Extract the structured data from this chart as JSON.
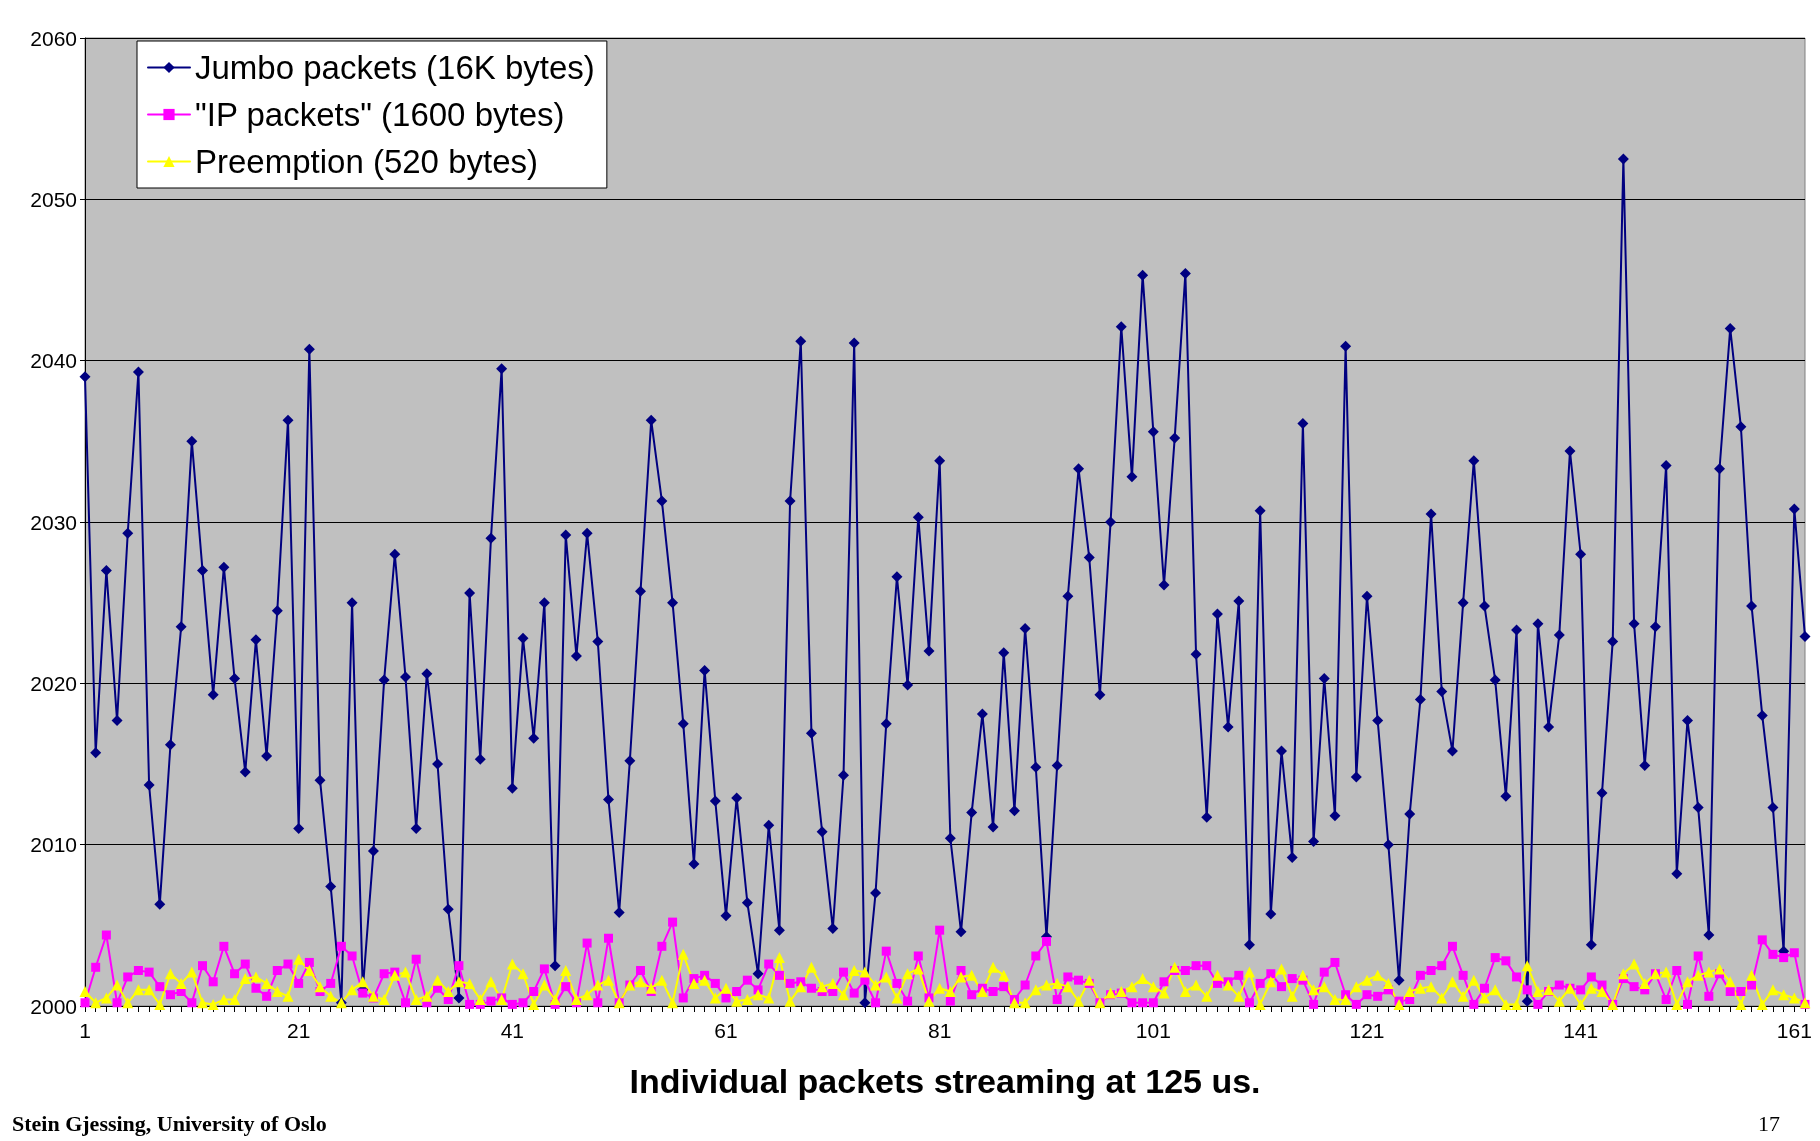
{
  "chart_data": {
    "type": "line",
    "xlabel": "Individual packets streaming at 125 us.",
    "categories": [
      "1",
      null,
      null,
      null,
      null,
      null,
      null,
      null,
      null,
      null,
      null,
      null,
      null,
      null,
      null,
      null,
      null,
      null,
      null,
      null,
      "21",
      null,
      null,
      null,
      null,
      null,
      null,
      null,
      null,
      null,
      null,
      null,
      null,
      null,
      null,
      null,
      null,
      null,
      null,
      null,
      "41",
      null,
      null,
      null,
      null,
      null,
      null,
      null,
      null,
      null,
      null,
      null,
      null,
      null,
      null,
      null,
      null,
      null,
      null,
      null,
      "61",
      null,
      null,
      null,
      null,
      null,
      null,
      null,
      null,
      null,
      null,
      null,
      null,
      null,
      null,
      null,
      null,
      null,
      null,
      null,
      "81",
      null,
      null,
      null,
      null,
      null,
      null,
      null,
      null,
      null,
      null,
      null,
      null,
      null,
      null,
      null,
      null,
      null,
      null,
      null,
      "101",
      null,
      null,
      null,
      null,
      null,
      null,
      null,
      null,
      null,
      null,
      null,
      null,
      null,
      null,
      null,
      null,
      null,
      null,
      null,
      "121",
      null,
      null,
      null,
      null,
      null,
      null,
      null,
      null,
      null,
      null,
      null,
      null,
      null,
      null,
      null,
      null,
      null,
      null,
      null,
      "141",
      null,
      null,
      null,
      null,
      null,
      null,
      null,
      null,
      null,
      null,
      null,
      null,
      null,
      null,
      null,
      null,
      null,
      null,
      null,
      "161",
      null
    ],
    "series": [
      {
        "name": "Jumbo packets (16K bytes)",
        "color": "#000080",
        "marker": "diamond",
        "values": [
          2039,
          2015.7,
          2027,
          2017.7,
          2029.3,
          2039.3,
          2013.7,
          2006.3,
          2016.2,
          2023.5,
          2035,
          2027,
          2019.3,
          2027.2,
          2020.3,
          2014.5,
          2022.7,
          2015.5,
          2024.5,
          2036.3,
          2011,
          2040.7,
          2014,
          2007.4,
          2000.2,
          2025,
          2001,
          2009.6,
          2020.2,
          2028,
          2020.4,
          2011,
          2020.6,
          2015,
          2006,
          2000.5,
          2025.6,
          2015.3,
          2029,
          2039.5,
          2013.5,
          2022.8,
          2016.6,
          2025,
          2002.5,
          2029.2,
          2021.7,
          2029.3,
          2022.6,
          2012.8,
          2005.8,
          2015.2,
          2025.7,
          2036.3,
          2031.3,
          2025,
          2017.5,
          2008.8,
          2020.8,
          2012.7,
          2005.6,
          2012.9,
          2006.4,
          2002,
          2011.2,
          2004.7,
          2031.3,
          2041.2,
          2016.9,
          2010.8,
          2004.8,
          2014.3,
          2041.1,
          2000.2,
          2007,
          2017.5,
          2026.6,
          2019.9,
          2030.3,
          2022,
          2033.8,
          2010.4,
          2004.6,
          2012,
          2018.1,
          2011.1,
          2021.9,
          2012.1,
          2023.4,
          2014.8,
          2004.3,
          2014.9,
          2025.4,
          2033.3,
          2027.8,
          2019.3,
          2030,
          2042.1,
          2032.8,
          2045.3,
          2035.6,
          2026.1,
          2035.2,
          2045.4,
          2021.8,
          2011.7,
          2024.3,
          2017.3,
          2025.1,
          2003.8,
          2030.7,
          2005.7,
          2015.8,
          2009.2,
          2036.1,
          2010.2,
          2020.3,
          2011.8,
          2040.9,
          2014.2,
          2025.4,
          2017.7,
          2010,
          2001.6,
          2011.9,
          2019,
          2030.5,
          2019.5,
          2015.8,
          2025,
          2033.8,
          2024.8,
          2020.2,
          2013,
          2023.3,
          2000.3,
          2023.7,
          2017.3,
          2023,
          2034.4,
          2028,
          2003.8,
          2013.2,
          2022.6,
          2052.5,
          2023.7,
          2014.9,
          2023.5,
          2033.5,
          2008.2,
          2017.7,
          2012.3,
          2004.4,
          2033.3,
          2042,
          2035.9,
          2024.8,
          2018,
          2012.3,
          2003.4,
          2030.8,
          2022.9
        ]
      },
      {
        "name": "\"IP packets\" (1600 bytes)",
        "color": "#ff00ff",
        "marker": "square",
        "values": [
          2000.2,
          2002.4,
          2004.4,
          2000.2,
          2001.8,
          2002.2,
          2002.1,
          2001.2,
          2000.7,
          2000.9,
          2000.2,
          2002.5,
          2001.5,
          2003.7,
          2002,
          2002.6,
          2001.1,
          2000.6,
          2002.2,
          2002.6,
          2001.4,
          2002.7,
          2000.9,
          2001.4,
          2003.7,
          2003.1,
          2000.8,
          2000.5,
          2002,
          2002.1,
          2000.2,
          2002.9,
          2000.2,
          2001.1,
          2000.4,
          2002.5,
          2000.1,
          2000.1,
          2000.3,
          2000.5,
          2000.1,
          2000.2,
          2000.9,
          2002.3,
          2000.1,
          2001.2,
          2000.2,
          2003.9,
          2000.2,
          2004.2,
          2000.2,
          2001.3,
          2002.2,
          2000.9,
          2003.7,
          2005.2,
          2000.5,
          2001.7,
          2001.9,
          2001.4,
          2000.5,
          2000.9,
          2001.6,
          2001,
          2002.6,
          2001.9,
          2001.4,
          2001.5,
          2001.1,
          2000.9,
          2000.9,
          2002.1,
          2000.8,
          2001.6,
          2000.2,
          2003.4,
          2001.4,
          2000.3,
          2003.1,
          2000.5,
          2004.7,
          2000.3,
          2002.2,
          2000.7,
          2001.1,
          2000.9,
          2001.2,
          2000.4,
          2001.3,
          2003.1,
          2004,
          2000.4,
          2001.8,
          2001.6,
          2001.4,
          2000.2,
          2000.7,
          2000.8,
          2000.2,
          2000.2,
          2000.2,
          2001.5,
          2002.2,
          2002.2,
          2002.5,
          2002.5,
          2001.4,
          2001.5,
          2001.9,
          2000.2,
          2001.4,
          2002,
          2001.2,
          2001.7,
          2001.6,
          2000.1,
          2002.1,
          2002.7,
          2000.7,
          2000.1,
          2000.7,
          2000.6,
          2001,
          2000.3,
          2000.4,
          2001.9,
          2002.2,
          2002.5,
          2003.7,
          2001.9,
          2000.1,
          2001.1,
          2003,
          2002.8,
          2001.8,
          2001,
          2000.1,
          2000.9,
          2001.3,
          2001.1,
          2001,
          2001.8,
          2001.3,
          2000.1,
          2001.7,
          2001.2,
          2001,
          2002,
          2000.4,
          2002.2,
          2000.1,
          2003.1,
          2000.6,
          2002,
          2000.9,
          2000.9,
          2001.3,
          2004.1,
          2003.2,
          2003,
          2003.3,
          2000.1
        ]
      },
      {
        "name": "Preemption (520 bytes)",
        "color": "#ffff00",
        "marker": "triangle",
        "values": [
          2000.9,
          2000.2,
          2000.5,
          2001.3,
          2000.2,
          2001,
          2001,
          2000.1,
          2002,
          2001.4,
          2002.1,
          2000.2,
          2000.1,
          2000.4,
          2000.4,
          2001.7,
          2001.8,
          2001.4,
          2000.9,
          2000.6,
          2002.9,
          2002.2,
          2001.2,
          2000.6,
          2000.2,
          2001,
          2001.5,
          2000.6,
          2000.4,
          2001.9,
          2002.1,
          2000.4,
          2000.6,
          2001.6,
          2000.9,
          2001.5,
          2001.4,
          2000.4,
          2001.5,
          2000.4,
          2002.6,
          2002,
          2000.1,
          2001.3,
          2000.4,
          2002.2,
          2000.4,
          2000.7,
          2001.3,
          2001.6,
          2000.2,
          2001.3,
          2001.5,
          2001.1,
          2001.6,
          2000.2,
          2003.2,
          2001.4,
          2001.6,
          2000.5,
          2001.1,
          2000.3,
          2000.4,
          2000.7,
          2000.5,
          2003,
          2000.3,
          2001.2,
          2002.4,
          2001.2,
          2001.4,
          2000.7,
          2002.2,
          2002.1,
          2001.3,
          2001.8,
          2000.5,
          2002,
          2002.3,
          2000.3,
          2001.1,
          2000.9,
          2001.8,
          2001.9,
          2000.9,
          2002.4,
          2001.9,
          2000.2,
          2000.2,
          2001,
          2001.3,
          2001.4,
          2001.2,
          2000.3,
          2001.6,
          2000.2,
          2000.8,
          2000.9,
          2001.2,
          2001.7,
          2001.2,
          2000.8,
          2002.4,
          2000.9,
          2001.3,
          2000.6,
          2001.9,
          2001.3,
          2000.6,
          2002.1,
          2000.1,
          2001.5,
          2002.3,
          2000.6,
          2001.9,
          2001,
          2001.2,
          2000.4,
          2000.4,
          2001.2,
          2001.6,
          2001.9,
          2001.4,
          2000.1,
          2000.9,
          2001.1,
          2001.2,
          2000.5,
          2001.5,
          2000.6,
          2001.6,
          2000.5,
          2001,
          2000.1,
          2000.1,
          2002.5,
          2000.9,
          2001,
          2000.3,
          2001.1,
          2000.1,
          2001.1,
          2000.9,
          2000.1,
          2002,
          2002.6,
          2001.4,
          2002,
          2002.1,
          2000.1,
          2001.5,
          2001.9,
          2002.1,
          2002.3,
          2001.5,
          2000.1,
          2001.9,
          2000.1,
          2001,
          2000.7,
          2000.5,
          2000.2
        ]
      }
    ],
    "ylim": [
      2000,
      2060
    ],
    "yticks": [
      2000,
      2010,
      2020,
      2030,
      2040,
      2050,
      2060
    ],
    "grid": "y",
    "legend": "top left",
    "line_style": "solid",
    "annotations": [
      "Stein Gjessing, University of Oslo",
      "17"
    ]
  }
}
